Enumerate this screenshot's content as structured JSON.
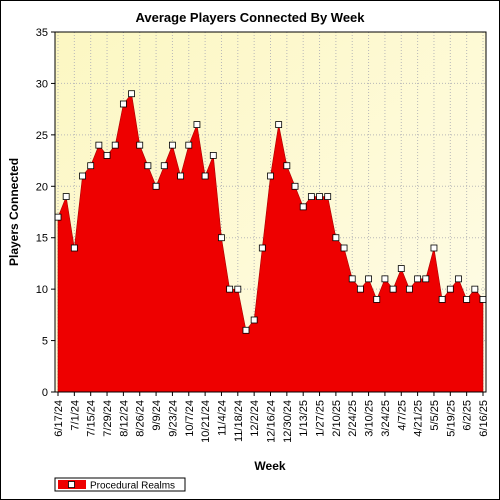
{
  "chart_data": {
    "type": "area",
    "title": "Average Players Connected By Week",
    "xlabel": "Week",
    "ylabel": "Players Connected",
    "ylim": [
      0,
      35
    ],
    "yticks": [
      0,
      5,
      10,
      15,
      20,
      25,
      30,
      35
    ],
    "grid": true,
    "legend_position": "bottom-left",
    "x": [
      "6/17/24",
      "6/24/24",
      "7/1/24",
      "7/8/24",
      "7/15/24",
      "7/22/24",
      "7/29/24",
      "8/5/24",
      "8/12/24",
      "8/19/24",
      "8/26/24",
      "9/2/24",
      "9/9/24",
      "9/16/24",
      "9/23/24",
      "9/30/24",
      "10/7/24",
      "10/14/24",
      "10/21/24",
      "10/28/24",
      "11/4/24",
      "11/11/24",
      "11/18/24",
      "11/25/24",
      "12/2/24",
      "12/9/24",
      "12/16/24",
      "12/23/24",
      "12/30/24",
      "1/6/25",
      "1/13/25",
      "1/20/25",
      "1/27/25",
      "2/3/25",
      "2/10/25",
      "2/17/25",
      "2/24/25",
      "3/3/25",
      "3/10/25",
      "3/17/25",
      "3/24/25",
      "3/31/25",
      "4/7/25",
      "4/14/25",
      "4/21/25",
      "4/28/25",
      "5/5/25",
      "5/12/25",
      "5/19/25",
      "5/26/25",
      "6/2/25",
      "6/9/25",
      "6/16/25"
    ],
    "x_tick_labels": [
      "6/17/24",
      "7/1/24",
      "7/15/24",
      "7/29/24",
      "8/12/24",
      "8/26/24",
      "9/9/24",
      "9/23/24",
      "10/7/24",
      "10/21/24",
      "11/4/24",
      "11/18/24",
      "12/2/24",
      "12/16/24",
      "12/30/24",
      "1/13/25",
      "1/27/25",
      "2/10/25",
      "2/24/25",
      "3/10/25",
      "3/24/25",
      "4/7/25",
      "4/21/25",
      "5/5/25",
      "5/19/25",
      "6/2/25",
      "6/16/25"
    ],
    "series": [
      {
        "name": "Procedural Realms",
        "color": "#ee0000",
        "values": [
          17,
          19,
          14,
          21,
          22,
          24,
          23,
          24,
          28,
          29,
          24,
          22,
          20,
          22,
          24,
          21,
          24,
          26,
          21,
          23,
          15,
          10,
          10,
          6,
          7,
          14,
          21,
          26,
          22,
          20,
          18,
          19,
          19,
          19,
          15,
          14,
          11,
          10,
          11,
          9,
          11,
          10,
          12,
          10,
          11,
          11,
          14,
          9,
          10,
          11,
          9,
          10,
          9
        ]
      }
    ]
  },
  "colors": {
    "plot_bg_top": "#fdfbe0",
    "plot_bg_bottom": "#fff8c8",
    "area_fill": "#ee0000",
    "marker_fill": "#ffffff"
  }
}
